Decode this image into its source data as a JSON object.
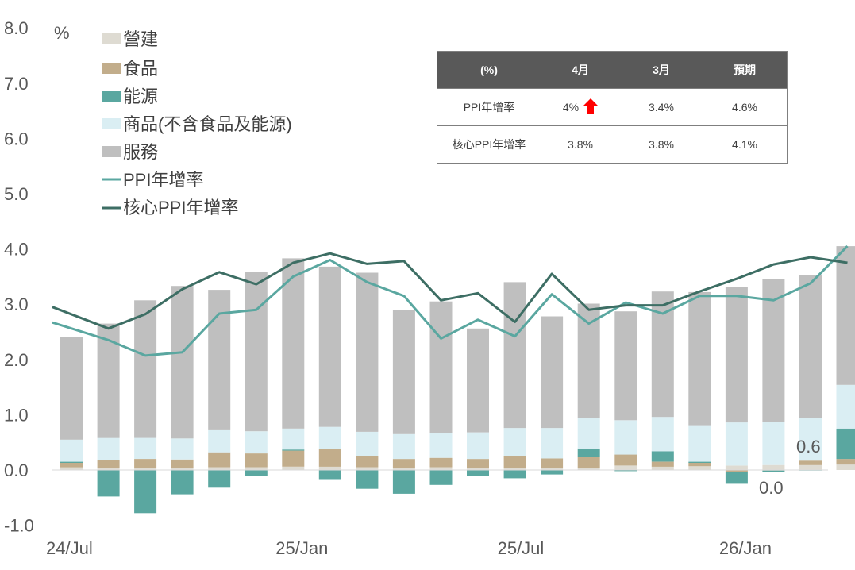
{
  "chart_data": {
    "type": "bar",
    "stacked": true,
    "unit_label": "%",
    "ylim": [
      -1.0,
      8.0
    ],
    "yticks": [
      "8.0",
      "7.0",
      "6.0",
      "5.0",
      "4.0",
      "3.0",
      "2.0",
      "1.0",
      "0.0",
      "-1.0"
    ],
    "x_tick_labels": [
      "24/Jul",
      "25/Jan",
      "25/Jul",
      "26/Jan"
    ],
    "x_tick_index": [
      0,
      6,
      12,
      18
    ],
    "categories": [
      "24/Jul",
      "24/Aug",
      "24/Sep",
      "24/Oct",
      "24/Nov",
      "24/Dec",
      "25/Jan",
      "25/Feb",
      "25/Mar",
      "25/Apr",
      "25/May",
      "25/Jun",
      "25/Jul",
      "25/Aug",
      "25/Sep",
      "25/Oct",
      "25/Nov",
      "25/Dec",
      "26/Jan",
      "26/Feb",
      "26/Mar",
      "26/Apr"
    ],
    "series": [
      {
        "name": "營建",
        "kind": "bar",
        "color": "#dedbd2",
        "values": [
          0.05,
          0.03,
          0.03,
          0.03,
          0.05,
          0.05,
          0.06,
          0.06,
          0.05,
          0.03,
          0.05,
          0.03,
          0.04,
          0.04,
          0.03,
          0.08,
          0.06,
          0.07,
          0.08,
          0.09,
          0.09,
          0.1
        ]
      },
      {
        "name": "食品",
        "kind": "bar",
        "color": "#c2ad8b",
        "values": [
          0.08,
          0.15,
          0.17,
          0.16,
          0.27,
          0.25,
          0.29,
          0.32,
          0.2,
          0.17,
          0.17,
          0.17,
          0.21,
          0.17,
          0.2,
          0.2,
          0.09,
          0.06,
          -0.03,
          -0.01,
          0.08,
          0.1
        ]
      },
      {
        "name": "能源",
        "kind": "bar",
        "color": "#5aa7a0",
        "values": [
          0.02,
          -0.48,
          -0.78,
          -0.44,
          -0.32,
          -0.1,
          0.02,
          -0.18,
          -0.34,
          -0.43,
          -0.27,
          -0.1,
          -0.15,
          -0.08,
          0.16,
          -0.02,
          0.19,
          0.02,
          -0.22,
          -0.02,
          -0.01,
          0.55
        ]
      },
      {
        "name": "商品(不含食品及能源)",
        "kind": "bar",
        "color": "#daeef3",
        "values": [
          0.4,
          0.4,
          0.38,
          0.38,
          0.4,
          0.4,
          0.38,
          0.4,
          0.44,
          0.45,
          0.45,
          0.48,
          0.51,
          0.55,
          0.55,
          0.62,
          0.62,
          0.66,
          0.78,
          0.78,
          0.77,
          0.79
        ]
      },
      {
        "name": "服務",
        "kind": "bar",
        "color": "#bfbfbf",
        "values": [
          1.86,
          2.07,
          2.49,
          2.76,
          2.54,
          2.89,
          3.08,
          2.9,
          2.88,
          2.25,
          2.38,
          1.88,
          2.64,
          2.02,
          2.07,
          1.97,
          2.27,
          2.41,
          2.45,
          2.58,
          2.58,
          2.51
        ]
      },
      {
        "name": "PPI年增率",
        "kind": "line",
        "color": "#5aa7a0",
        "values": [
          2.67,
          2.35,
          2.07,
          2.13,
          2.83,
          2.9,
          3.5,
          3.8,
          3.4,
          3.15,
          2.38,
          2.72,
          2.42,
          3.18,
          2.65,
          3.03,
          2.83,
          3.15,
          3.15,
          3.07,
          3.38,
          4.05
        ]
      },
      {
        "name": "核心PPI年增率",
        "kind": "line",
        "color": "#3d6e64",
        "values": [
          2.95,
          2.56,
          2.82,
          3.27,
          3.58,
          3.36,
          3.75,
          3.92,
          3.73,
          3.78,
          3.07,
          3.2,
          2.68,
          3.55,
          2.9,
          2.98,
          2.98,
          3.23,
          3.46,
          3.72,
          3.85,
          3.75
        ]
      }
    ],
    "annotations": [
      {
        "text": "0.6",
        "color": "#595959"
      },
      {
        "text": "0.0",
        "color": "#595959"
      }
    ],
    "legend_position": "top-left",
    "grid": false
  },
  "table": {
    "headers": [
      "(%)",
      "4月",
      "3月",
      "預期"
    ],
    "rows": [
      {
        "label": "PPI年增率",
        "apr": "4%",
        "mar": "3.4%",
        "exp": "4.6%"
      },
      {
        "label": "核心PPI年增率",
        "apr": "3.8%",
        "mar": "3.8%",
        "exp": "4.1%"
      }
    ],
    "arrow_color": "#ff0000"
  }
}
